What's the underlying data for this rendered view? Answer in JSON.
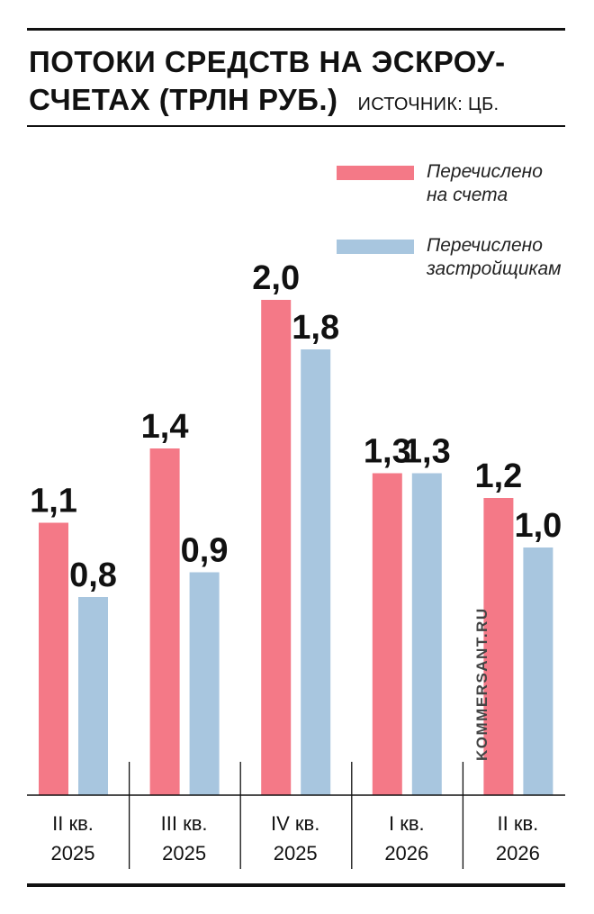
{
  "header": {
    "title_line1": "ПОТОКИ СРЕДСТВ НА ЭСКРОУ-",
    "title_line2": "СЧЕТАХ (ТРЛН РУБ.)",
    "source": "ИСТОЧНИК: ЦБ."
  },
  "legend": {
    "series1_line1": "Перечислено",
    "series1_line2": "на счета",
    "series2_line1": "Перечислено",
    "series2_line2": "застройщикам"
  },
  "watermark": "KOMMERSANT.RU",
  "colors": {
    "series1": "#f47987",
    "series2": "#a8c6df"
  },
  "chart_data": {
    "type": "bar",
    "title": "ПОТОКИ СРЕДСТВ НА ЭСКРОУ-СЧЕТАХ (ТРЛН РУБ.)",
    "categories": [
      [
        "II кв.",
        "2025"
      ],
      [
        "III кв.",
        "2025"
      ],
      [
        "IV кв.",
        "2025"
      ],
      [
        "I кв.",
        "2026"
      ],
      [
        "II кв.",
        "2026"
      ]
    ],
    "series": [
      {
        "name": "Перечислено на счета",
        "values": [
          1.1,
          1.4,
          2.0,
          1.3,
          1.2
        ],
        "labels": [
          "1,1",
          "1,4",
          "2,0",
          "1,3",
          "1,2"
        ]
      },
      {
        "name": "Перечислено застройщикам",
        "values": [
          0.8,
          0.9,
          1.8,
          1.3,
          1.0
        ],
        "labels": [
          "0,8",
          "0,9",
          "1,8",
          "1,3",
          "1,0"
        ]
      }
    ],
    "ylim": [
      0,
      2.0
    ],
    "grid": false,
    "legend_position": "top-right"
  }
}
